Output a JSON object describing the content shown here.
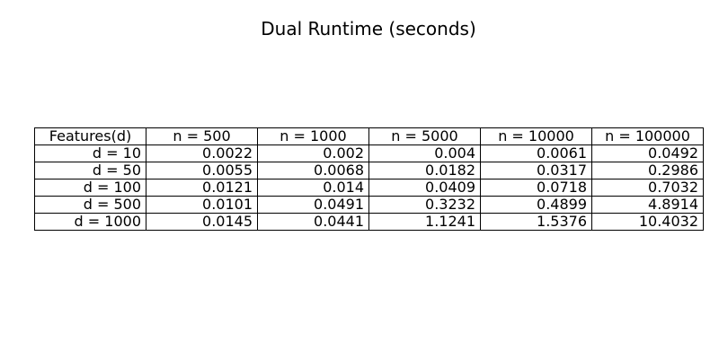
{
  "chart_data": {
    "type": "table",
    "title": "Dual Runtime (seconds)",
    "columns": [
      "Features(d)",
      "n = 500",
      "n = 1000",
      "n = 5000",
      "n = 10000",
      "n = 100000"
    ],
    "rows": [
      [
        "d = 10",
        "0.0022",
        "0.002",
        "0.004",
        "0.0061",
        "0.0492"
      ],
      [
        "d = 50",
        "0.0055",
        "0.0068",
        "0.0182",
        "0.0317",
        "0.2986"
      ],
      [
        "d = 100",
        "0.0121",
        "0.014",
        "0.0409",
        "0.0718",
        "0.7032"
      ],
      [
        "d = 500",
        "0.0101",
        "0.0491",
        "0.3232",
        "0.4899",
        "4.8914"
      ],
      [
        "d = 1000",
        "0.0145",
        "0.0441",
        "1.1241",
        "1.5376",
        "10.4032"
      ]
    ]
  }
}
